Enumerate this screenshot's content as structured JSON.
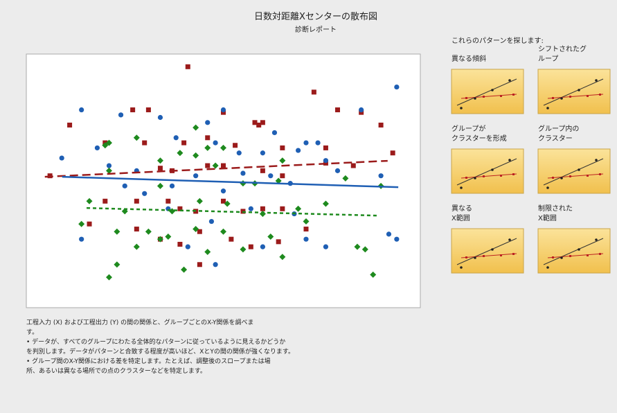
{
  "chart_data": {
    "type": "scatter",
    "title": "日数対距離Xセンターの散布図",
    "subtitle": "診断レポート",
    "xlim": [
      0,
      100
    ],
    "ylim": [
      0,
      100
    ],
    "series": [
      {
        "color": "#9b1b1b",
        "marker": "square",
        "line_style": "dashed",
        "fit_x": [
          4.7,
          91.7
        ],
        "fit_values": [
          51.6,
          57.9
        ],
        "x": [
          41,
          73,
          11,
          27,
          31,
          50,
          58,
          60,
          59,
          79,
          90,
          85,
          20,
          30,
          40,
          46,
          53,
          65,
          76,
          93,
          6,
          34,
          37,
          46,
          50,
          60,
          65,
          76,
          83,
          20,
          28,
          36,
          39,
          43,
          50,
          55,
          60,
          65,
          28,
          34,
          39,
          44,
          52,
          57,
          64,
          71,
          44,
          16
        ],
        "values": [
          95,
          85,
          72,
          78,
          78,
          77,
          73,
          73,
          72,
          78,
          72,
          77,
          65,
          65,
          65,
          67,
          64,
          63,
          63,
          61,
          52,
          55,
          54,
          56,
          56,
          54,
          52,
          57,
          56,
          42,
          42,
          42,
          39,
          38,
          42,
          38,
          39,
          39,
          31,
          27,
          25,
          30,
          27,
          24,
          26,
          31,
          17,
          33
        ]
      },
      {
        "color": "#1f5fb4",
        "marker": "circle",
        "line_style": "solid",
        "fit_x": [
          9.1,
          94.4
        ],
        "fit_values": [
          51.6,
          47.5
        ],
        "x": [
          14,
          94,
          24,
          34,
          50,
          46,
          63,
          85,
          71,
          74,
          9,
          18,
          38,
          48,
          54,
          60,
          69,
          76,
          21,
          28,
          43,
          55,
          62,
          79,
          90,
          25,
          37,
          50,
          67,
          36,
          47,
          57,
          68,
          14,
          41,
          48,
          60,
          76,
          92,
          94,
          71,
          30
        ],
        "values": [
          78,
          87,
          76,
          75,
          78,
          73,
          69,
          78,
          65,
          65,
          59,
          63,
          67,
          65,
          61,
          61,
          62,
          58,
          56,
          54,
          52,
          53,
          52,
          54,
          52,
          48,
          48,
          46,
          49,
          39,
          34,
          39,
          37,
          27,
          24,
          17,
          24,
          24,
          29,
          27,
          27,
          45
        ]
      },
      {
        "color": "#1e8a1e",
        "marker": "diamond",
        "line_style": "dotted",
        "fit_x": [
          15.3,
          89.1
        ],
        "fit_values": [
          39.3,
          36.3
        ],
        "x": [
          21,
          23,
          40,
          28,
          34,
          46,
          55,
          65,
          84,
          88,
          86,
          14,
          23,
          31,
          36,
          43,
          50,
          62,
          71,
          16,
          25,
          37,
          44,
          51,
          60,
          69,
          76,
          21,
          34,
          43,
          46,
          55,
          58,
          64,
          81,
          90,
          21,
          43,
          39,
          50,
          20,
          28,
          48,
          34,
          65
        ],
        "values": [
          12,
          17,
          15,
          24,
          27,
          22,
          23,
          20,
          24,
          13,
          23,
          33,
          30,
          30,
          28,
          31,
          30,
          28,
          34,
          42,
          38,
          38,
          42,
          41,
          37,
          39,
          41,
          54,
          58,
          60,
          63,
          49,
          49,
          50,
          51,
          48,
          65,
          71,
          61,
          63,
          64,
          67,
          56,
          48,
          58
        ]
      }
    ]
  },
  "patterns": {
    "heading": "これらのパターンを探します:",
    "items": [
      {
        "caption": [
          "",
          "異なる傾斜"
        ]
      },
      {
        "caption": [
          "シフトされたグ",
          "ループ"
        ]
      },
      {
        "caption": [
          "グループが",
          "クラスターを形成"
        ]
      },
      {
        "caption": [
          "グループ内の",
          "クラスター"
        ]
      },
      {
        "caption": [
          "異なる",
          "X範囲"
        ]
      },
      {
        "caption": [
          "制限された",
          "X範囲"
        ]
      }
    ]
  },
  "report": {
    "notes": [
      "工程入力 (X) および工程出力 (Y) の間の関係と、グループごとのX-Y関係を調べま",
      "す。",
      "• データが、すべてのグループにわたる全体的なパターンに従っているように見えるかどうか",
      "を判別します。データがパターンと合致する程度が高いほど、XとYの間の関係が強くなります。",
      "• グループ間のX-Y関係における差を特定します。たとえば、調整後のスロープまたは場",
      "所、あるいは異なる場所での点のクラスターなどを特定します。"
    ]
  }
}
